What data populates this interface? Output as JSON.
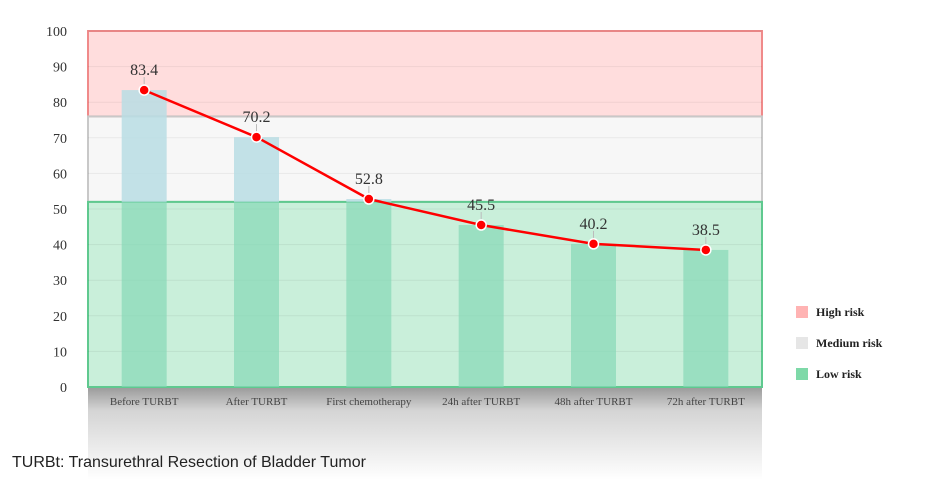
{
  "chart_data": {
    "type": "bar",
    "categories": [
      "Before TURBT",
      "After TURBT",
      "First chemotherapy",
      "24h after TURBT",
      "48h after TURBT",
      "72h after TURBT"
    ],
    "values": [
      83.4,
      70.2,
      52.8,
      45.5,
      40.2,
      38.5
    ],
    "line_values": [
      83.4,
      70.2,
      52.8,
      45.5,
      40.2,
      38.5
    ],
    "data_labels": [
      "83.4",
      "70.2",
      "52.8",
      "45.5",
      "40.2",
      "38.5"
    ],
    "ylim": [
      0,
      100
    ],
    "yticks": [
      "0",
      "10",
      "20",
      "30",
      "40",
      "50",
      "60",
      "70",
      "80",
      "90",
      "100"
    ],
    "grid": true,
    "zones": [
      {
        "label": "High risk",
        "from": 76,
        "to": 100,
        "color": "#ffb3b3"
      },
      {
        "label": "Medium risk",
        "from": 52,
        "to": 76,
        "color": "#e8e8e8"
      },
      {
        "label": "Low risk",
        "from": 0,
        "to": 52,
        "color": "#7ed9a8"
      }
    ],
    "legend_position": "right",
    "line_color": "#ff0000",
    "bar_color_high": "#b9dde4",
    "bar_color_low": "#86d9b6"
  },
  "legend": {
    "items": [
      {
        "label": "High risk",
        "color": "#ffb3b3"
      },
      {
        "label": "Medium risk",
        "color": "#e6e6e6"
      },
      {
        "label": "Low risk",
        "color": "#7ed9a8"
      }
    ]
  },
  "footnote": "TURBt: Transurethral Resection of Bladder Tumor"
}
